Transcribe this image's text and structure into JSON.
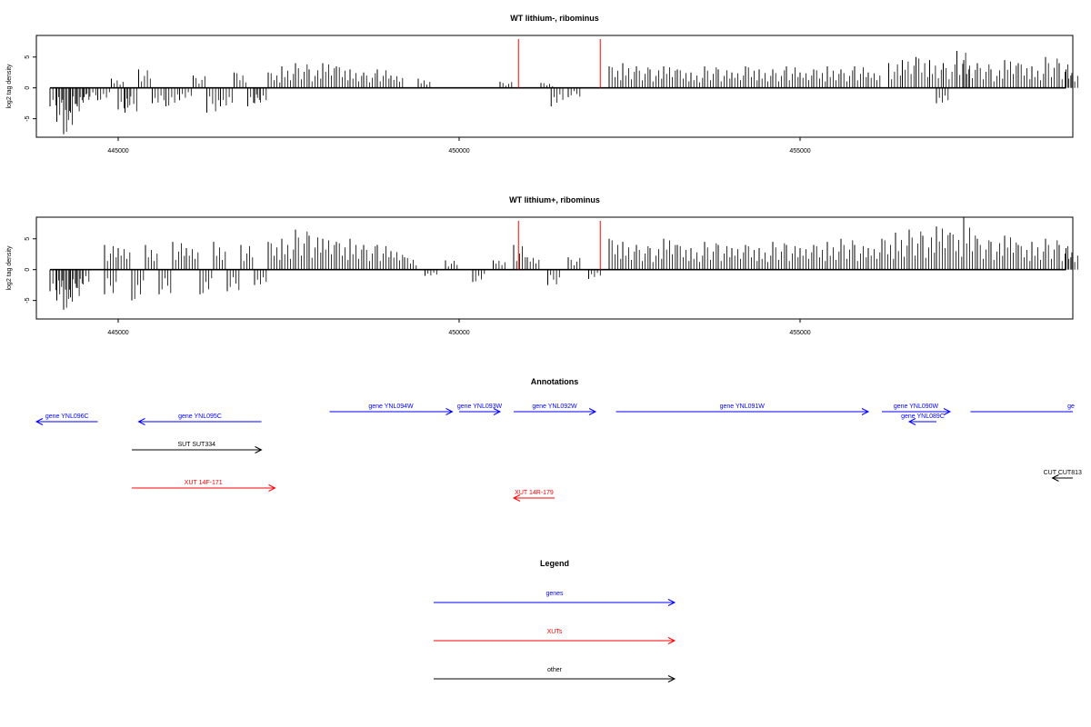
{
  "chart_data": [
    {
      "type": "bar",
      "title": "WT lithium-, ribominus",
      "ylabel": "log2 tag density",
      "xlabel": "",
      "xlim": [
        443800,
        459000
      ],
      "ylim": [
        -8,
        8.5
      ],
      "xticks": [
        445000,
        450000,
        455000
      ],
      "yticks": [
        -5,
        0,
        5
      ],
      "markers": [
        450870,
        452070
      ],
      "marker_color": "#ff0000",
      "series": [
        {
          "values": [
            [
              444000,
              -3
            ],
            [
              444100,
              -5.5
            ],
            [
              444200,
              -7.5
            ],
            [
              444300,
              -4
            ],
            [
              444400,
              -3
            ],
            [
              444500,
              -1.5
            ],
            [
              444700,
              -2
            ],
            [
              444900,
              1.5
            ],
            [
              445000,
              -3.5
            ],
            [
              445100,
              -4
            ],
            [
              445300,
              3
            ],
            [
              445500,
              -2.5
            ],
            [
              445700,
              -3
            ],
            [
              445900,
              -2
            ],
            [
              446100,
              2
            ],
            [
              446300,
              -4
            ],
            [
              446500,
              -3
            ],
            [
              446700,
              2.5
            ],
            [
              446900,
              -3
            ],
            [
              447000,
              -2.5
            ],
            [
              447200,
              2.5
            ],
            [
              447400,
              3.5
            ],
            [
              447600,
              4
            ],
            [
              447800,
              3
            ],
            [
              448000,
              4
            ],
            [
              448200,
              3.5
            ],
            [
              448400,
              3
            ],
            [
              448600,
              2.5
            ],
            [
              448800,
              3
            ],
            [
              449000,
              2
            ],
            [
              449400,
              1.5
            ],
            [
              450600,
              1
            ],
            [
              451200,
              0.8
            ],
            [
              451350,
              -3
            ],
            [
              451600,
              -1.5
            ],
            [
              452200,
              3.5
            ],
            [
              452400,
              4
            ],
            [
              452600,
              3.5
            ],
            [
              452800,
              3
            ],
            [
              453000,
              3.5
            ],
            [
              453200,
              3
            ],
            [
              453400,
              2.5
            ],
            [
              453600,
              3.5
            ],
            [
              453800,
              3
            ],
            [
              454000,
              2.5
            ],
            [
              454200,
              3.5
            ],
            [
              454400,
              3
            ],
            [
              454600,
              3
            ],
            [
              454800,
              3.5
            ],
            [
              455000,
              2.5
            ],
            [
              455200,
              3
            ],
            [
              455400,
              3.5
            ],
            [
              455600,
              3
            ],
            [
              455800,
              3.5
            ],
            [
              456000,
              2.5
            ],
            [
              456300,
              4
            ],
            [
              456500,
              4.5
            ],
            [
              456700,
              5
            ],
            [
              456900,
              4.5
            ],
            [
              457000,
              -2.5
            ],
            [
              457100,
              4
            ],
            [
              457300,
              6
            ],
            [
              457400,
              4.5
            ],
            [
              457600,
              4
            ],
            [
              457800,
              3
            ],
            [
              458000,
              4.5
            ],
            [
              458200,
              4
            ],
            [
              458400,
              3.5
            ],
            [
              458600,
              5
            ],
            [
              458800,
              4
            ],
            [
              458900,
              3
            ]
          ]
        }
      ]
    },
    {
      "type": "bar",
      "title": "WT lithium+, ribominus",
      "ylabel": "log2 tag density",
      "xlabel": "",
      "xlim": [
        443800,
        459000
      ],
      "ylim": [
        -8,
        8.5
      ],
      "xticks": [
        445000,
        450000,
        455000
      ],
      "yticks": [
        -5,
        0,
        5
      ],
      "markers": [
        450870,
        452070
      ],
      "marker_color": "#ff0000",
      "series": [
        {
          "values": [
            [
              444000,
              -3.5
            ],
            [
              444100,
              -5
            ],
            [
              444200,
              -6.5
            ],
            [
              444300,
              -4.5
            ],
            [
              444400,
              -3
            ],
            [
              444800,
              -4
            ],
            [
              444800,
              4
            ],
            [
              445000,
              3.5
            ],
            [
              445200,
              -5
            ],
            [
              445400,
              4
            ],
            [
              445600,
              -4
            ],
            [
              445800,
              4.5
            ],
            [
              446000,
              3.5
            ],
            [
              446200,
              -4
            ],
            [
              446400,
              4.5
            ],
            [
              446600,
              -3.5
            ],
            [
              446800,
              4
            ],
            [
              447000,
              -2.5
            ],
            [
              447200,
              4.5
            ],
            [
              447400,
              5
            ],
            [
              447600,
              6.5
            ],
            [
              447800,
              5.5
            ],
            [
              448000,
              5
            ],
            [
              448200,
              4.5
            ],
            [
              448400,
              5
            ],
            [
              448600,
              4
            ],
            [
              448800,
              4
            ],
            [
              449000,
              3
            ],
            [
              449200,
              2
            ],
            [
              449500,
              -1
            ],
            [
              449800,
              1.5
            ],
            [
              450200,
              -2
            ],
            [
              450500,
              1.5
            ],
            [
              450800,
              4
            ],
            [
              451000,
              2
            ],
            [
              451300,
              -2.5
            ],
            [
              451600,
              2
            ],
            [
              451900,
              -1.5
            ],
            [
              452200,
              5
            ],
            [
              452400,
              4.5
            ],
            [
              452600,
              4
            ],
            [
              452800,
              3.5
            ],
            [
              453000,
              5
            ],
            [
              453200,
              4
            ],
            [
              453400,
              3.5
            ],
            [
              453600,
              4.5
            ],
            [
              453800,
              4
            ],
            [
              454000,
              3.5
            ],
            [
              454200,
              4
            ],
            [
              454400,
              3.5
            ],
            [
              454600,
              4.5
            ],
            [
              454800,
              4
            ],
            [
              455000,
              3.5
            ],
            [
              455200,
              4
            ],
            [
              455400,
              4.5
            ],
            [
              455600,
              5
            ],
            [
              455800,
              4
            ],
            [
              456000,
              3.5
            ],
            [
              456200,
              5
            ],
            [
              456400,
              6
            ],
            [
              456600,
              6.5
            ],
            [
              456800,
              5.5
            ],
            [
              457000,
              7
            ],
            [
              457200,
              6
            ],
            [
              457400,
              8.5
            ],
            [
              457600,
              5
            ],
            [
              457800,
              4.5
            ],
            [
              458000,
              5.5
            ],
            [
              458200,
              4
            ],
            [
              458400,
              4.5
            ],
            [
              458600,
              5
            ],
            [
              458800,
              4
            ],
            [
              458900,
              3.5
            ]
          ]
        }
      ]
    },
    {
      "type": "annotation",
      "title": "Annotations",
      "xlim": [
        443800,
        459000
      ],
      "features": [
        {
          "label": "gene YNL096C",
          "start": 443800,
          "end": 444700,
          "strand": "-",
          "color": "#0000ff",
          "row": 1
        },
        {
          "label": "gene YNL095C",
          "start": 445300,
          "end": 447100,
          "strand": "-",
          "color": "#0000ff",
          "row": 1
        },
        {
          "label": "gene YNL094W",
          "start": 448100,
          "end": 449900,
          "strand": "+",
          "color": "#0000ff",
          "row": 0
        },
        {
          "label": "gene YNL093W",
          "start": 450000,
          "end": 450600,
          "strand": "+",
          "color": "#0000ff",
          "row": 0
        },
        {
          "label": "gene YNL092W",
          "start": 450800,
          "end": 452000,
          "strand": "+",
          "color": "#0000ff",
          "row": 0
        },
        {
          "label": "gene YNL091W",
          "start": 452300,
          "end": 456000,
          "strand": "+",
          "color": "#0000ff",
          "row": 0
        },
        {
          "label": "gene YNL090W",
          "start": 456200,
          "end": 457200,
          "strand": "+",
          "color": "#0000ff",
          "row": 0
        },
        {
          "label": "gene YNL089C",
          "start": 456600,
          "end": 457000,
          "strand": "-",
          "color": "#0000ff",
          "row": 1
        },
        {
          "label": "ge",
          "start": 457500,
          "end": 459000,
          "strand": "+",
          "color": "#0000ff",
          "row": 0
        },
        {
          "label": "SUT SUT334",
          "start": 445200,
          "end": 447100,
          "strand": "+",
          "color": "#000000",
          "row": 2
        },
        {
          "label": "XUT 14F-171",
          "start": 445200,
          "end": 447300,
          "strand": "+",
          "color": "#ff0000",
          "row": 3
        },
        {
          "label": "XUT 14R-179",
          "start": 450800,
          "end": 451400,
          "strand": "-",
          "color": "#ff0000",
          "row": 4
        },
        {
          "label": "CUT CUT813",
          "start": 458700,
          "end": 459000,
          "strand": "-",
          "color": "#000000",
          "row": 5
        }
      ]
    },
    {
      "type": "legend",
      "title": "Legend",
      "items": [
        {
          "label": "genes",
          "color": "#0000ff"
        },
        {
          "label": "XUTs",
          "color": "#ff0000"
        },
        {
          "label": "other",
          "color": "#000000"
        }
      ]
    }
  ]
}
